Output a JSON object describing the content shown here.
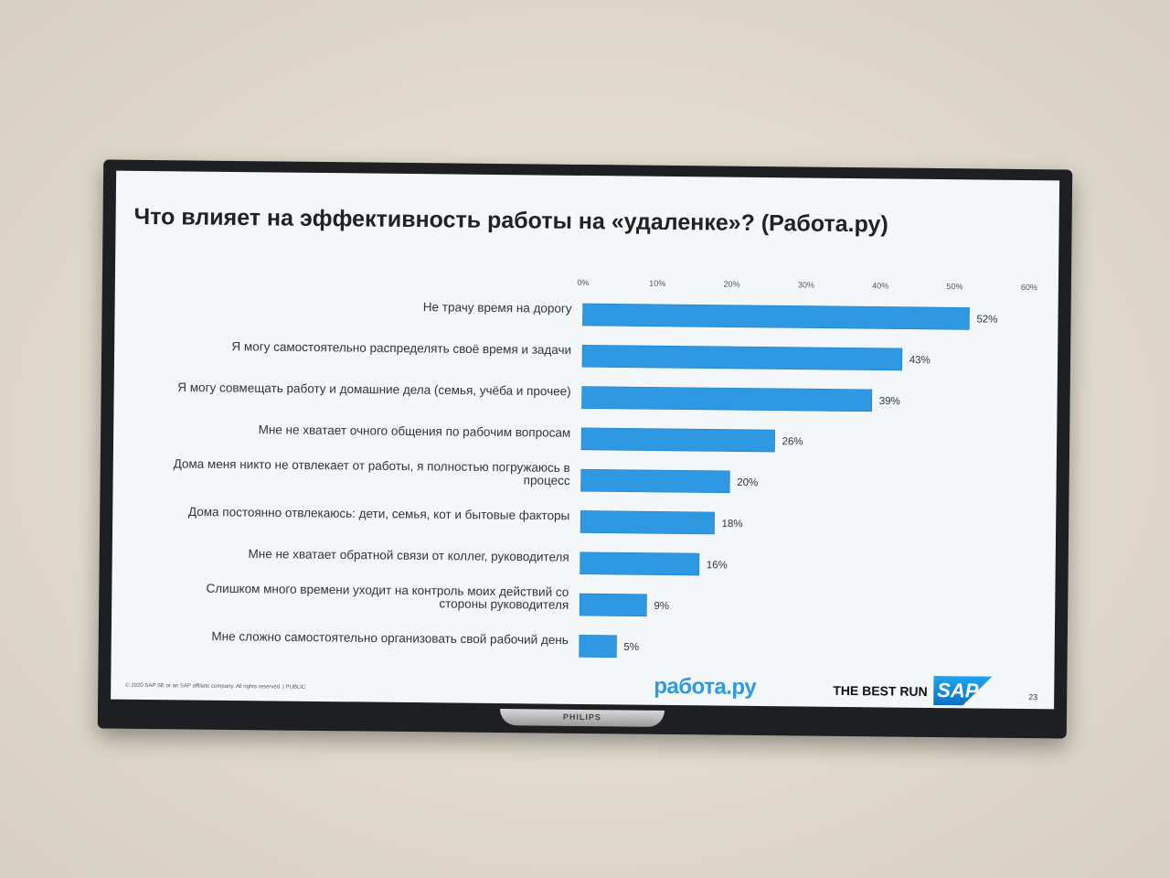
{
  "slide": {
    "title": "Что влияет на эффективность работы на «удаленке»? (Работа.ру)",
    "footer_copyright": "© 2020 SAP SE or an SAP affiliate company. All rights reserved.  |  PUBLIC",
    "logo_rabota": "работа.ру",
    "tagline": "THE BEST RUN",
    "logo_sap": "SAP",
    "page_number": "23",
    "tv_brand": "PHILIPS"
  },
  "colors": {
    "bar": "#2f98e2",
    "bar_edge": "#1f7fc7",
    "text": "#333333"
  },
  "chart_data": {
    "type": "bar",
    "orientation": "horizontal",
    "title": "Что влияет на эффективность работы на «удаленке»? (Работа.ру)",
    "xlim": [
      0,
      60
    ],
    "x_ticks": [
      "0%",
      "10%",
      "20%",
      "30%",
      "40%",
      "50%",
      "60%"
    ],
    "x_tick_values": [
      0,
      10,
      20,
      30,
      40,
      50,
      60
    ],
    "axis_position": "top",
    "grid": false,
    "categories": [
      [
        "Не трачу время на дорогу"
      ],
      [
        "Я могу самостоятельно распределять своё время и задачи"
      ],
      [
        "Я могу совмещать работу и домашние дела (семья, учёба и прочее)"
      ],
      [
        "Мне не хватает очного общения по рабочим вопросам"
      ],
      [
        "Дома меня никто не отвлекает от работы, я полностью погружаюсь в",
        "процесс"
      ],
      [
        "Дома постоянно отвлекаюсь: дети, семья, кот и бытовые факторы"
      ],
      [
        "Мне не хватает обратной связи от коллег, руководителя"
      ],
      [
        "Слишком много времени уходит на контроль моих действий со",
        "стороны руководителя"
      ],
      [
        "Мне сложно самостоятельно организовать свой рабочий день"
      ]
    ],
    "values": [
      52,
      43,
      39,
      26,
      20,
      18,
      16,
      9,
      5
    ],
    "value_labels": [
      "52%",
      "43%",
      "39%",
      "26%",
      "20%",
      "18%",
      "16%",
      "9%",
      "5%"
    ]
  }
}
